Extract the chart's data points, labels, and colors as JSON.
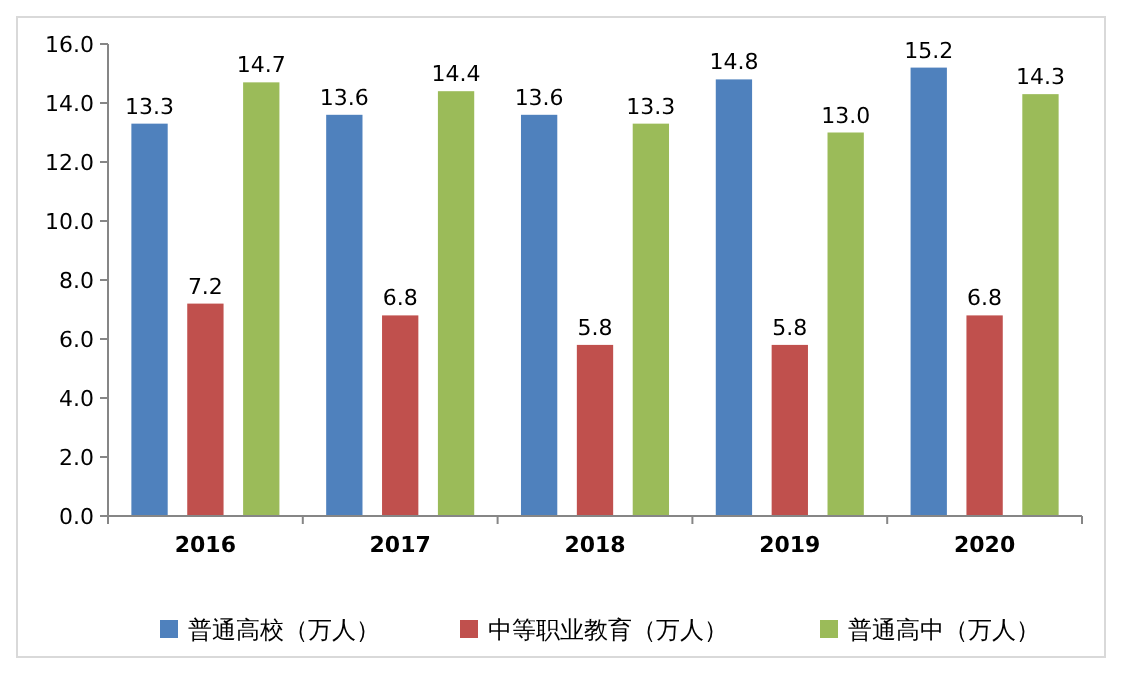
{
  "chart_data": {
    "type": "bar",
    "categories": [
      "2016",
      "2017",
      "2018",
      "2019",
      "2020"
    ],
    "series": [
      {
        "name": "普通高校（万人）",
        "color": "#4f81bd",
        "values": [
          13.3,
          13.6,
          13.6,
          14.8,
          15.2
        ],
        "value_labels": [
          "13.3",
          "13.6",
          "13.6",
          "14.8",
          "15.2"
        ]
      },
      {
        "name": "中等职业教育（万人）",
        "color": "#c0504d",
        "values": [
          7.2,
          6.8,
          5.8,
          5.8,
          6.8
        ],
        "value_labels": [
          "7.2",
          "6.8",
          "5.8",
          "5.8",
          "6.8"
        ]
      },
      {
        "name": "普通高中（万人）",
        "color": "#9bbb59",
        "values": [
          14.7,
          14.4,
          13.3,
          13.0,
          14.3
        ],
        "value_labels": [
          "14.7",
          "14.4",
          "13.3",
          "13.0",
          "14.3"
        ]
      }
    ],
    "ylim": [
      0,
      16
    ],
    "yticks": [
      {
        "value": 0,
        "label": "0.0"
      },
      {
        "value": 2,
        "label": "2.0"
      },
      {
        "value": 4,
        "label": "4.0"
      },
      {
        "value": 6,
        "label": "6.0"
      },
      {
        "value": 8,
        "label": "8.0"
      },
      {
        "value": 10,
        "label": "10.0"
      },
      {
        "value": 12,
        "label": "12.0"
      },
      {
        "value": 14,
        "label": "14.0"
      },
      {
        "value": 16,
        "label": "16.0"
      }
    ],
    "legend": "bottom"
  }
}
